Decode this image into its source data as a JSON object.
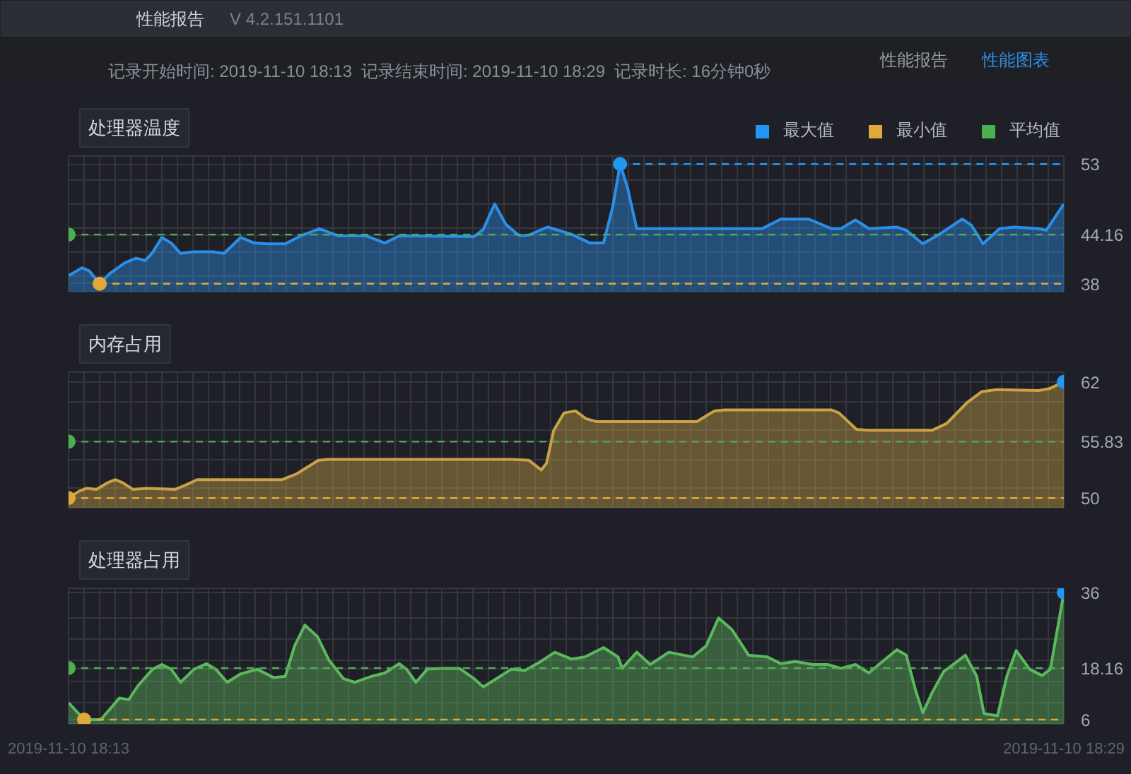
{
  "chart_data": [
    {
      "type": "other",
      "title": "性能报告",
      "annotations": [
        "V 4.2.151.1101",
        "记录开始时间: 2019-11-10 18:13",
        "记录结束时间: 2019-11-10 18:29",
        "记录时长: 16分钟0秒",
        "性能报告",
        "性能图表"
      ]
    },
    {
      "type": "area",
      "title": "处理器温度",
      "xlim": [
        "2019-11-10T18:13",
        "2019-11-10T18:29"
      ],
      "ylim": [
        37,
        54
      ],
      "grid": true,
      "tick_labels": "y",
      "legend": "top right",
      "xticks": [
        "2019-11-10T18:13:00",
        "2019-11-10T18:13:15",
        "2019-11-10T18:13:30",
        "2019-11-10T18:13:45",
        "2019-11-10T18:14:00",
        "2019-11-10T18:14:15",
        "2019-11-10T18:14:30",
        "2019-11-10T18:14:45",
        "2019-11-10T18:15:00",
        "2019-11-10T18:15:15",
        "2019-11-10T18:15:30",
        "2019-11-10T18:15:45",
        "2019-11-10T18:16:00",
        "2019-11-10T18:16:15",
        "2019-11-10T18:16:30",
        "2019-11-10T18:16:45",
        "2019-11-10T18:17:00",
        "2019-11-10T18:17:15",
        "2019-11-10T18:17:30",
        "2019-11-10T18:17:45",
        "2019-11-10T18:18:00",
        "2019-11-10T18:18:15",
        "2019-11-10T18:18:30",
        "2019-11-10T18:18:45",
        "2019-11-10T18:19:00",
        "2019-11-10T18:19:15",
        "2019-11-10T18:19:30",
        "2019-11-10T18:19:45",
        "2019-11-10T18:20:00",
        "2019-11-10T18:20:15",
        "2019-11-10T18:20:30",
        "2019-11-10T18:20:45",
        "2019-11-10T18:21:00",
        "2019-11-10T18:21:15",
        "2019-11-10T18:21:30",
        "2019-11-10T18:21:45",
        "2019-11-10T18:22:00",
        "2019-11-10T18:22:15",
        "2019-11-10T18:22:30",
        "2019-11-10T18:22:45",
        "2019-11-10T18:23:00",
        "2019-11-10T18:23:15",
        "2019-11-10T18:23:30",
        "2019-11-10T18:23:45",
        "2019-11-10T18:24:00",
        "2019-11-10T18:24:15",
        "2019-11-10T18:24:30",
        "2019-11-10T18:24:45",
        "2019-11-10T18:25:00",
        "2019-11-10T18:25:15",
        "2019-11-10T18:25:30",
        "2019-11-10T18:25:45",
        "2019-11-10T18:26:00",
        "2019-11-10T18:26:15",
        "2019-11-10T18:26:30",
        "2019-11-10T18:26:45",
        "2019-11-10T18:27:00",
        "2019-11-10T18:27:15",
        "2019-11-10T18:27:30",
        "2019-11-10T18:27:45",
        "2019-11-10T18:28:00",
        "2019-11-10T18:28:15",
        "2019-11-10T18:28:30",
        "2019-11-10T18:28:45",
        "2019-11-10T18:29:00"
      ],
      "yticks": [
        38,
        {
          "value": 39,
          "label": null
        },
        {
          "value": 42,
          "label": null
        },
        44.16,
        {
          "value": 45,
          "label": null
        },
        {
          "value": 48,
          "label": null
        },
        {
          "value": 51,
          "label": null
        },
        53
      ],
      "ref_lines": [
        {
          "axis": "y",
          "value": 44.16,
          "color": "#4caf50",
          "line_style": "dashed"
        }
      ],
      "series": [
        {
          "type": "area",
          "color": "#2a8fe8",
          "x": [
            "2019-11-10T18:13:00",
            "2019-11-10T18:13:13",
            "2019-11-10T18:13:20",
            "2019-11-10T18:13:30",
            "2019-11-10T18:13:40",
            "2019-11-10T18:13:54",
            "2019-11-10T18:14:05",
            "2019-11-10T18:14:14",
            "2019-11-10T18:14:21",
            "2019-11-10T18:14:30",
            "2019-11-10T18:14:39",
            "2019-11-10T18:14:48",
            "2019-11-10T18:15:01",
            "2019-11-10T18:15:19",
            "2019-11-10T18:15:30",
            "2019-11-10T18:15:46",
            "2019-11-10T18:15:59",
            "2019-11-10T18:16:11",
            "2019-11-10T18:16:29",
            "2019-11-10T18:16:44",
            "2019-11-10T18:17:02",
            "2019-11-10T18:17:20",
            "2019-11-10T18:17:47",
            "2019-11-10T18:18:05",
            "2019-11-10T18:18:19",
            "2019-11-10T18:19:31",
            "2019-11-10T18:19:40",
            "2019-11-10T18:19:51",
            "2019-11-10T18:20:02",
            "2019-11-10T18:20:15",
            "2019-11-10T18:20:24",
            "2019-11-10T18:20:42",
            "2019-11-10T18:21:05",
            "2019-11-10T18:21:23",
            "2019-11-10T18:21:36",
            "2019-11-10T18:21:45",
            "2019-11-10T18:21:52",
            "2019-11-10T18:21:59",
            "2019-11-10T18:22:08",
            "2019-11-10T18:22:24",
            "2019-11-10T18:24:09",
            "2019-11-10T18:24:27",
            "2019-11-10T18:24:54",
            "2019-11-10T18:25:16",
            "2019-11-10T18:25:25",
            "2019-11-10T18:25:39",
            "2019-11-10T18:25:52",
            "2019-11-10T18:26:19",
            "2019-11-10T18:26:28",
            "2019-11-10T18:26:44",
            "2019-11-10T18:27:00",
            "2019-11-10T18:27:22",
            "2019-11-10T18:27:31",
            "2019-11-10T18:27:42",
            "2019-11-10T18:27:58",
            "2019-11-10T18:28:12",
            "2019-11-10T18:28:36",
            "2019-11-10T18:28:43",
            "2019-11-10T18:29:00"
          ],
          "values": [
            39.0,
            40.0,
            39.6,
            38,
            39.3,
            40.6,
            41.2,
            40.9,
            41.9,
            43.8,
            43.1,
            41.8,
            42.0,
            42.0,
            41.8,
            43.8,
            43.1,
            43.0,
            43.0,
            44.0,
            44.9,
            44.0,
            44.0,
            43.1,
            44.0,
            43.9,
            44.8,
            48.0,
            45.4,
            44.0,
            44.1,
            45.1,
            44.2,
            43.1,
            43.1,
            47.7,
            53,
            50.1,
            44.9,
            44.9,
            44.9,
            46.1,
            46.1,
            44.9,
            44.9,
            46.0,
            44.9,
            45.1,
            44.7,
            43.0,
            44.2,
            46.1,
            45.3,
            43.0,
            44.9,
            45.1,
            44.9,
            44.7,
            48.0
          ]
        },
        {
          "type": "line",
          "color": "#2196f3",
          "line_style": "dashed",
          "x": [
            "2019-11-10T18:21:52",
            "2019-11-10T18:29:00"
          ],
          "values": [
            53,
            53
          ]
        },
        {
          "type": "line",
          "color": "#e0a838",
          "line_style": "dashed",
          "x": [
            "2019-11-10T18:13:30",
            "2019-11-10T18:29:00"
          ],
          "values": [
            38,
            38
          ]
        },
        {
          "type": "scatter",
          "name": "最大值",
          "color": "#2196f3",
          "marker": "circle",
          "x": [
            "2019-11-10T18:21:52"
          ],
          "values": [
            53
          ]
        },
        {
          "type": "scatter",
          "name": "最小值",
          "color": "#e0a838",
          "marker": "circle",
          "x": [
            "2019-11-10T18:13:30"
          ],
          "values": [
            38
          ]
        },
        {
          "type": "scatter",
          "name": "平均值",
          "color": "#4caf50",
          "marker": "circle",
          "x": [
            "2019-11-10T18:13:00"
          ],
          "values": [
            44.16
          ]
        }
      ]
    },
    {
      "type": "area",
      "title": "内存占用",
      "xlim": [
        "2019-11-10T18:13",
        "2019-11-10T18:29"
      ],
      "ylim": [
        49,
        63
      ],
      "grid": true,
      "tick_labels": "y",
      "xticks": [
        "2019-11-10T18:13:00",
        "2019-11-10T18:13:15",
        "2019-11-10T18:13:30",
        "2019-11-10T18:13:45",
        "2019-11-10T18:14:00",
        "2019-11-10T18:14:15",
        "2019-11-10T18:14:30",
        "2019-11-10T18:14:45",
        "2019-11-10T18:15:00",
        "2019-11-10T18:15:15",
        "2019-11-10T18:15:30",
        "2019-11-10T18:15:45",
        "2019-11-10T18:16:00",
        "2019-11-10T18:16:15",
        "2019-11-10T18:16:30",
        "2019-11-10T18:16:45",
        "2019-11-10T18:17:00",
        "2019-11-10T18:17:15",
        "2019-11-10T18:17:30",
        "2019-11-10T18:17:45",
        "2019-11-10T18:18:00",
        "2019-11-10T18:18:15",
        "2019-11-10T18:18:30",
        "2019-11-10T18:18:45",
        "2019-11-10T18:19:00",
        "2019-11-10T18:19:15",
        "2019-11-10T18:19:30",
        "2019-11-10T18:19:45",
        "2019-11-10T18:20:00",
        "2019-11-10T18:20:15",
        "2019-11-10T18:20:30",
        "2019-11-10T18:20:45",
        "2019-11-10T18:21:00",
        "2019-11-10T18:21:15",
        "2019-11-10T18:21:30",
        "2019-11-10T18:21:45",
        "2019-11-10T18:22:00",
        "2019-11-10T18:22:15",
        "2019-11-10T18:22:30",
        "2019-11-10T18:22:45",
        "2019-11-10T18:23:00",
        "2019-11-10T18:23:15",
        "2019-11-10T18:23:30",
        "2019-11-10T18:23:45",
        "2019-11-10T18:24:00",
        "2019-11-10T18:24:15",
        "2019-11-10T18:24:30",
        "2019-11-10T18:24:45",
        "2019-11-10T18:25:00",
        "2019-11-10T18:25:15",
        "2019-11-10T18:25:30",
        "2019-11-10T18:25:45",
        "2019-11-10T18:26:00",
        "2019-11-10T18:26:15",
        "2019-11-10T18:26:30",
        "2019-11-10T18:26:45",
        "2019-11-10T18:27:00",
        "2019-11-10T18:27:15",
        "2019-11-10T18:27:30",
        "2019-11-10T18:27:45",
        "2019-11-10T18:28:00",
        "2019-11-10T18:28:15",
        "2019-11-10T18:28:30",
        "2019-11-10T18:28:45",
        "2019-11-10T18:29:00"
      ],
      "yticks": [
        50,
        {
          "value": 51,
          "label": null
        },
        {
          "value": 54,
          "label": null
        },
        55.83,
        {
          "value": 57,
          "label": null
        },
        {
          "value": 60,
          "label": null
        },
        62
      ],
      "ref_lines": [
        {
          "axis": "y",
          "value": 55.83,
          "color": "#4caf50",
          "line_style": "dashed"
        }
      ],
      "series": [
        {
          "type": "area",
          "color": "#c9a246",
          "x": [
            "2019-11-10T18:13:00",
            "2019-11-10T18:13:10",
            "2019-11-10T18:13:17",
            "2019-11-10T18:13:27",
            "2019-11-10T18:13:38",
            "2019-11-10T18:13:45",
            "2019-11-10T18:13:52",
            "2019-11-10T18:14:02",
            "2019-11-10T18:14:16",
            "2019-11-10T18:14:43",
            "2019-11-10T18:14:54",
            "2019-11-10T18:15:04",
            "2019-11-10T18:16:26",
            "2019-11-10T18:16:40",
            "2019-11-10T18:17:01",
            "2019-11-10T18:17:11",
            "2019-11-10T18:20:07",
            "2019-11-10T18:20:24",
            "2019-11-10T18:20:36",
            "2019-11-10T18:20:41",
            "2019-11-10T18:20:48",
            "2019-11-10T18:20:58",
            "2019-11-10T18:21:09",
            "2019-11-10T18:21:19",
            "2019-11-10T18:21:29",
            "2019-11-10T18:23:06",
            "2019-11-10T18:23:23",
            "2019-11-10T18:23:33",
            "2019-11-10T18:25:16",
            "2019-11-10T18:25:23",
            "2019-11-10T18:25:40",
            "2019-11-10T18:25:51",
            "2019-11-10T18:26:53",
            "2019-11-10T18:27:07",
            "2019-11-10T18:27:27",
            "2019-11-10T18:27:41",
            "2019-11-10T18:27:55",
            "2019-11-10T18:28:36",
            "2019-11-10T18:28:46",
            "2019-11-10T18:29:00"
          ],
          "values": [
            50,
            50.7,
            51.0,
            50.9,
            51.6,
            51.9,
            51.6,
            50.9,
            51.0,
            50.9,
            51.4,
            51.9,
            51.9,
            52.5,
            53.9,
            54.0,
            54.0,
            53.9,
            52.9,
            53.6,
            57.0,
            58.8,
            59.0,
            58.2,
            57.9,
            57.9,
            59.0,
            59.1,
            59.1,
            58.8,
            57.1,
            57.0,
            57.0,
            57.7,
            59.9,
            61.0,
            61.2,
            61.1,
            61.3,
            62
          ]
        },
        {
          "type": "line",
          "color": "#e0a838",
          "line_style": "dashed",
          "x": [
            "2019-11-10T18:13:00",
            "2019-11-10T18:29:00"
          ],
          "values": [
            50,
            50
          ]
        },
        {
          "type": "scatter",
          "color": "#2196f3",
          "marker": "circle",
          "x": [
            "2019-11-10T18:29:00"
          ],
          "values": [
            62
          ]
        },
        {
          "type": "scatter",
          "color": "#e0a838",
          "marker": "circle",
          "x": [
            "2019-11-10T18:13:00"
          ],
          "values": [
            50
          ]
        },
        {
          "type": "scatter",
          "color": "#4caf50",
          "marker": "circle",
          "x": [
            "2019-11-10T18:13:00"
          ],
          "values": [
            55.83
          ]
        }
      ]
    },
    {
      "type": "area",
      "title": "处理器占用",
      "xlim": [
        "2019-11-10T18:13",
        "2019-11-10T18:29"
      ],
      "ylim": [
        5,
        37
      ],
      "grid": true,
      "xticks": [
        {
          "value": "2019-11-10T18:13:00",
          "label": "2019-11-10 18:13"
        },
        {
          "value": "2019-11-10T18:13:15",
          "label": null
        },
        {
          "value": "2019-11-10T18:13:30",
          "label": null
        },
        {
          "value": "2019-11-10T18:13:45",
          "label": null
        },
        {
          "value": "2019-11-10T18:14:00",
          "label": null
        },
        {
          "value": "2019-11-10T18:14:15",
          "label": null
        },
        {
          "value": "2019-11-10T18:14:30",
          "label": null
        },
        {
          "value": "2019-11-10T18:14:45",
          "label": null
        },
        {
          "value": "2019-11-10T18:15:00",
          "label": null
        },
        {
          "value": "2019-11-10T18:15:15",
          "label": null
        },
        {
          "value": "2019-11-10T18:15:30",
          "label": null
        },
        {
          "value": "2019-11-10T18:15:45",
          "label": null
        },
        {
          "value": "2019-11-10T18:16:00",
          "label": null
        },
        {
          "value": "2019-11-10T18:16:15",
          "label": null
        },
        {
          "value": "2019-11-10T18:16:30",
          "label": null
        },
        {
          "value": "2019-11-10T18:16:45",
          "label": null
        },
        {
          "value": "2019-11-10T18:17:00",
          "label": null
        },
        {
          "value": "2019-11-10T18:17:15",
          "label": null
        },
        {
          "value": "2019-11-10T18:17:30",
          "label": null
        },
        {
          "value": "2019-11-10T18:17:45",
          "label": null
        },
        {
          "value": "2019-11-10T18:18:00",
          "label": null
        },
        {
          "value": "2019-11-10T18:18:15",
          "label": null
        },
        {
          "value": "2019-11-10T18:18:30",
          "label": null
        },
        {
          "value": "2019-11-10T18:18:45",
          "label": null
        },
        {
          "value": "2019-11-10T18:19:00",
          "label": null
        },
        {
          "value": "2019-11-10T18:19:15",
          "label": null
        },
        {
          "value": "2019-11-10T18:19:30",
          "label": null
        },
        {
          "value": "2019-11-10T18:19:45",
          "label": null
        },
        {
          "value": "2019-11-10T18:20:00",
          "label": null
        },
        {
          "value": "2019-11-10T18:20:15",
          "label": null
        },
        {
          "value": "2019-11-10T18:20:30",
          "label": null
        },
        {
          "value": "2019-11-10T18:20:45",
          "label": null
        },
        {
          "value": "2019-11-10T18:21:00",
          "label": null
        },
        {
          "value": "2019-11-10T18:21:15",
          "label": null
        },
        {
          "value": "2019-11-10T18:21:30",
          "label": null
        },
        {
          "value": "2019-11-10T18:21:45",
          "label": null
        },
        {
          "value": "2019-11-10T18:22:00",
          "label": null
        },
        {
          "value": "2019-11-10T18:22:15",
          "label": null
        },
        {
          "value": "2019-11-10T18:22:30",
          "label": null
        },
        {
          "value": "2019-11-10T18:22:45",
          "label": null
        },
        {
          "value": "2019-11-10T18:23:00",
          "label": null
        },
        {
          "value": "2019-11-10T18:23:15",
          "label": null
        },
        {
          "value": "2019-11-10T18:23:30",
          "label": null
        },
        {
          "value": "2019-11-10T18:23:45",
          "label": null
        },
        {
          "value": "2019-11-10T18:24:00",
          "label": null
        },
        {
          "value": "2019-11-10T18:24:15",
          "label": null
        },
        {
          "value": "2019-11-10T18:24:30",
          "label": null
        },
        {
          "value": "2019-11-10T18:24:45",
          "label": null
        },
        {
          "value": "2019-11-10T18:25:00",
          "label": null
        },
        {
          "value": "2019-11-10T18:25:15",
          "label": null
        },
        {
          "value": "2019-11-10T18:25:30",
          "label": null
        },
        {
          "value": "2019-11-10T18:25:45",
          "label": null
        },
        {
          "value": "2019-11-10T18:26:00",
          "label": null
        },
        {
          "value": "2019-11-10T18:26:15",
          "label": null
        },
        {
          "value": "2019-11-10T18:26:30",
          "label": null
        },
        {
          "value": "2019-11-10T18:26:45",
          "label": null
        },
        {
          "value": "2019-11-10T18:27:00",
          "label": null
        },
        {
          "value": "2019-11-10T18:27:15",
          "label": null
        },
        {
          "value": "2019-11-10T18:27:30",
          "label": null
        },
        {
          "value": "2019-11-10T18:27:45",
          "label": null
        },
        {
          "value": "2019-11-10T18:28:00",
          "label": null
        },
        {
          "value": "2019-11-10T18:28:15",
          "label": null
        },
        {
          "value": "2019-11-10T18:28:30",
          "label": null
        },
        {
          "value": "2019-11-10T18:28:45",
          "label": null
        },
        {
          "value": "2019-11-10T18:29:00",
          "label": "2019-11-10 18:29"
        }
      ],
      "yticks": [
        6,
        {
          "value": 10,
          "label": null
        },
        {
          "value": 15,
          "label": null
        },
        18.16,
        {
          "value": 20,
          "label": null
        },
        {
          "value": 25,
          "label": null
        },
        {
          "value": 30,
          "label": null
        },
        36
      ],
      "ref_lines": [
        {
          "axis": "y",
          "value": 18.16,
          "color": "#4caf50",
          "line_style": "dashed"
        }
      ],
      "series": [
        {
          "type": "area",
          "color": "#5cb85c",
          "x": [
            "2019-11-10T18:13:00",
            "2019-11-10T18:13:09",
            "2019-11-10T18:13:15",
            "2019-11-10T18:13:31",
            "2019-11-10T18:13:40",
            "2019-11-10T18:13:49",
            "2019-11-10T18:13:58",
            "2019-11-10T18:14:07",
            "2019-11-10T18:14:21",
            "2019-11-10T18:14:30",
            "2019-11-10T18:14:39",
            "2019-11-10T18:14:48",
            "2019-11-10T18:15:01",
            "2019-11-10T18:15:13",
            "2019-11-10T18:15:22",
            "2019-11-10T18:15:33",
            "2019-11-10T18:15:46",
            "2019-11-10T18:16:02",
            "2019-11-10T18:16:18",
            "2019-11-10T18:16:29",
            "2019-11-10T18:16:38",
            "2019-11-10T18:16:48",
            "2019-11-10T18:17:00",
            "2019-11-10T18:17:11",
            "2019-11-10T18:17:25",
            "2019-11-10T18:17:36",
            "2019-11-10T18:17:52",
            "2019-11-10T18:18:05",
            "2019-11-10T18:18:19",
            "2019-11-10T18:18:26",
            "2019-11-10T18:18:35",
            "2019-11-10T18:18:46",
            "2019-11-10T18:18:59",
            "2019-11-10T18:19:17",
            "2019-11-10T18:19:31",
            "2019-11-10T18:19:40",
            "2019-11-10T18:19:53",
            "2019-11-10T18:20:07",
            "2019-11-10T18:20:20",
            "2019-11-10T18:20:34",
            "2019-11-10T18:20:49",
            "2019-11-10T18:21:05",
            "2019-11-10T18:21:18",
            "2019-11-10T18:21:36",
            "2019-11-10T18:21:50",
            "2019-11-10T18:21:54",
            "2019-11-10T18:22:08",
            "2019-11-10T18:22:21",
            "2019-11-10T18:22:39",
            "2019-11-10T18:23:02",
            "2019-11-10T18:23:15",
            "2019-11-10T18:23:27",
            "2019-11-10T18:23:40",
            "2019-11-10T18:23:56",
            "2019-11-10T18:24:14",
            "2019-11-10T18:24:27",
            "2019-11-10T18:24:41",
            "2019-11-10T18:24:58",
            "2019-11-10T18:25:12",
            "2019-11-10T18:25:25",
            "2019-11-10T18:25:39",
            "2019-11-10T18:25:52",
            "2019-11-10T18:26:04",
            "2019-11-10T18:26:19",
            "2019-11-10T18:26:28",
            "2019-11-10T18:26:37",
            "2019-11-10T18:26:44",
            "2019-11-10T18:26:53",
            "2019-11-10T18:27:04",
            "2019-11-10T18:27:25",
            "2019-11-10T18:27:36",
            "2019-11-10T18:27:43",
            "2019-11-10T18:27:56",
            "2019-11-10T18:28:05",
            "2019-11-10T18:28:14",
            "2019-11-10T18:28:27",
            "2019-11-10T18:28:39",
            "2019-11-10T18:28:47",
            "2019-11-10T18:29:00"
          ],
          "values": [
            10.0,
            7.6,
            6,
            6,
            8.5,
            11.1,
            10.7,
            14.0,
            17.9,
            19.0,
            17.9,
            14.8,
            17.9,
            19.2,
            17.9,
            14.8,
            16.8,
            17.9,
            15.9,
            16.2,
            23.4,
            28.3,
            25.6,
            20.1,
            15.7,
            14.8,
            16.2,
            17.0,
            19.2,
            17.9,
            14.8,
            17.9,
            18.1,
            18.1,
            15.7,
            13.7,
            15.7,
            17.9,
            17.6,
            19.5,
            21.9,
            20.3,
            20.8,
            23.0,
            20.8,
            18.1,
            21.9,
            19.0,
            21.9,
            20.8,
            23.4,
            30.0,
            27.2,
            21.2,
            20.8,
            19.2,
            19.7,
            19.0,
            19.0,
            18.1,
            19.0,
            17.0,
            19.5,
            22.5,
            21.2,
            12.9,
            7.6,
            12.4,
            17.3,
            21.2,
            16.2,
            7.4,
            6.9,
            16.2,
            22.3,
            17.9,
            16.4,
            17.9,
            36
          ]
        },
        {
          "type": "line",
          "color": "#e0a838",
          "line_style": "dashed",
          "x": [
            "2019-11-10T18:13:15",
            "2019-11-10T18:29:00"
          ],
          "values": [
            6,
            6
          ]
        },
        {
          "type": "scatter",
          "color": "#2196f3",
          "marker": "circle",
          "x": [
            "2019-11-10T18:29:00"
          ],
          "values": [
            36
          ]
        },
        {
          "type": "scatter",
          "color": "#e0a838",
          "marker": "circle",
          "x": [
            "2019-11-10T18:13:15"
          ],
          "values": [
            6
          ]
        },
        {
          "type": "scatter",
          "color": "#4caf50",
          "marker": "circle",
          "x": [
            "2019-11-10T18:13:00"
          ],
          "values": [
            18.16
          ]
        }
      ]
    }
  ]
}
